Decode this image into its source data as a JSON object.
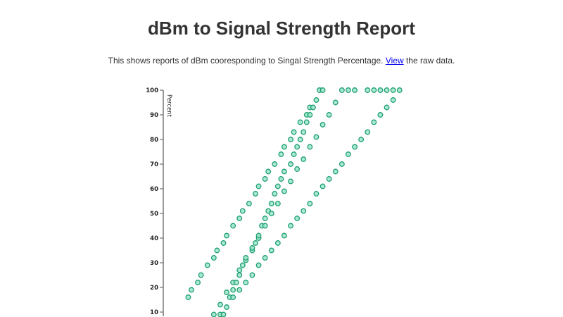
{
  "page": {
    "title": "dBm to Signal Strength Report",
    "description_before": "This shows reports of dBm cooresponding to Singal Strength Percentage. ",
    "link_label": "View",
    "description_after": " the raw data."
  },
  "chart_data": {
    "type": "scatter",
    "title": "",
    "xlabel": "",
    "ylabel": "Percent",
    "ylim": [
      0,
      100
    ],
    "yticks": [
      10,
      20,
      30,
      40,
      50,
      60,
      70,
      80,
      90,
      100
    ],
    "grid": false,
    "marker_stroke": "#1f9e72",
    "marker_fill": "#9be6c8",
    "points": [
      [
        -50,
        100
      ],
      [
        -49.5,
        100
      ],
      [
        -46.5,
        100
      ],
      [
        -45.5,
        100
      ],
      [
        -44.5,
        100
      ],
      [
        -42.5,
        100
      ],
      [
        -41.5,
        100
      ],
      [
        -40.5,
        100
      ],
      [
        -39.5,
        100
      ],
      [
        -38.5,
        100
      ],
      [
        -37.5,
        100
      ],
      [
        -50.5,
        96
      ],
      [
        -47.5,
        95
      ],
      [
        -38.5,
        96
      ],
      [
        -51.5,
        93
      ],
      [
        -51,
        93
      ],
      [
        -39.5,
        93
      ],
      [
        -48.5,
        90
      ],
      [
        -52,
        90
      ],
      [
        -51.5,
        90
      ],
      [
        -40.5,
        90
      ],
      [
        -53,
        87
      ],
      [
        -52,
        87
      ],
      [
        -49.5,
        86
      ],
      [
        -41.5,
        87
      ],
      [
        -54,
        83
      ],
      [
        -52.5,
        83
      ],
      [
        -42.5,
        83
      ],
      [
        -54.5,
        80
      ],
      [
        -53,
        80
      ],
      [
        -50.5,
        81
      ],
      [
        -43.5,
        80
      ],
      [
        -55.5,
        77
      ],
      [
        -53.5,
        77
      ],
      [
        -51.5,
        77
      ],
      [
        -44.5,
        77
      ],
      [
        -56,
        74
      ],
      [
        -54,
        74
      ],
      [
        -45.5,
        74
      ],
      [
        -57,
        70
      ],
      [
        -54.5,
        70
      ],
      [
        -52.5,
        72
      ],
      [
        -46.5,
        70
      ],
      [
        -58,
        67
      ],
      [
        -55.5,
        67
      ],
      [
        -53.5,
        68
      ],
      [
        -47.5,
        67
      ],
      [
        -56,
        64
      ],
      [
        -54.5,
        63
      ],
      [
        -48.5,
        64
      ],
      [
        -58.5,
        64
      ],
      [
        -56.5,
        61
      ],
      [
        -49.5,
        61
      ],
      [
        -59.5,
        61
      ],
      [
        -57,
        58
      ],
      [
        -55.5,
        59
      ],
      [
        -50.5,
        58
      ],
      [
        -60,
        58
      ],
      [
        -70.5,
        16
      ],
      [
        -70,
        19
      ],
      [
        -69,
        22
      ],
      [
        -68.5,
        25
      ],
      [
        -67.5,
        29
      ],
      [
        -66.5,
        32
      ],
      [
        -66,
        35
      ],
      [
        -65,
        38
      ],
      [
        -64.5,
        41
      ],
      [
        -63.5,
        45
      ],
      [
        -62.5,
        48
      ],
      [
        -62,
        51
      ],
      [
        -61,
        54
      ],
      [
        -66.5,
        9
      ],
      [
        -65.5,
        9
      ],
      [
        -65,
        9
      ],
      [
        -65.5,
        13
      ],
      [
        -64.5,
        12
      ],
      [
        -64.5,
        18
      ],
      [
        -64,
        16
      ],
      [
        -63.5,
        16
      ],
      [
        -63.5,
        19
      ],
      [
        -63.5,
        22
      ],
      [
        -63,
        22
      ],
      [
        -62.5,
        25
      ],
      [
        -62.5,
        27
      ],
      [
        -62,
        29
      ],
      [
        -61.5,
        31
      ],
      [
        -61.5,
        32
      ],
      [
        -60.5,
        35
      ],
      [
        -60.5,
        36
      ],
      [
        -60,
        38
      ],
      [
        -59.5,
        40
      ],
      [
        -59.5,
        41
      ],
      [
        -59,
        45
      ],
      [
        -58.5,
        45
      ],
      [
        -58.5,
        48
      ],
      [
        -58,
        51
      ],
      [
        -57.5,
        50
      ],
      [
        -57.5,
        54
      ],
      [
        -56.5,
        54
      ],
      [
        -62.5,
        19
      ],
      [
        -61.5,
        22
      ],
      [
        -60.5,
        25
      ],
      [
        -59.5,
        29
      ],
      [
        -58.5,
        32
      ],
      [
        -57.5,
        35
      ],
      [
        -56.5,
        38
      ],
      [
        -55.5,
        41
      ],
      [
        -54.5,
        45
      ],
      [
        -53.5,
        48
      ],
      [
        -52.5,
        51
      ],
      [
        -51.5,
        54
      ]
    ]
  }
}
